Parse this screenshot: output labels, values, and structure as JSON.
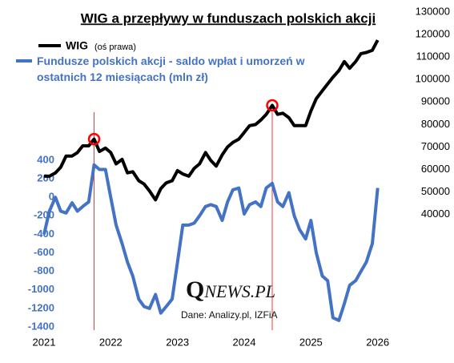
{
  "chart_data": {
    "type": "line",
    "title": "WIG a przepływy w funduszach polskich akcji",
    "legend_note": "(oś prawa)",
    "source": "Dane: Analizy.pl, IZFiA",
    "logo": "QNEWS.PL",
    "x": [
      2021,
      2021.08,
      2021.17,
      2021.25,
      2021.33,
      2021.42,
      2021.5,
      2021.58,
      2021.67,
      2021.75,
      2021.83,
      2021.92,
      2022,
      2022.08,
      2022.17,
      2022.25,
      2022.33,
      2022.42,
      2022.5,
      2022.58,
      2022.67,
      2022.75,
      2022.83,
      2022.92,
      2023,
      2023.08,
      2023.17,
      2023.25,
      2023.33,
      2023.42,
      2023.5,
      2023.58,
      2023.67,
      2023.75,
      2023.83,
      2023.92,
      2024,
      2024.08,
      2024.17,
      2024.25,
      2024.33,
      2024.42,
      2024.5,
      2024.58,
      2024.67,
      2024.75,
      2024.83,
      2024.92,
      2025,
      2025.08,
      2025.17,
      2025.25,
      2025.33,
      2025.42,
      2025.5,
      2025.58,
      2025.67,
      2025.75,
      2025.83,
      2025.92,
      2026
    ],
    "series": [
      {
        "name": "WIG",
        "color": "#000000",
        "axis": "y2",
        "values": [
          57000,
          57000,
          58500,
          61000,
          66000,
          66000,
          67500,
          70500,
          70500,
          73500,
          68000,
          69500,
          67500,
          62500,
          64500,
          58500,
          59000,
          55000,
          53500,
          50500,
          46500,
          51500,
          54000,
          55000,
          59500,
          58000,
          57000,
          60500,
          62500,
          67500,
          64000,
          61500,
          66500,
          70000,
          72000,
          73500,
          76500,
          79500,
          80000,
          82000,
          84500,
          88500,
          84500,
          85000,
          83000,
          79500,
          79500,
          79500,
          86000,
          91500,
          95000,
          98000,
          101000,
          104000,
          108000,
          105000,
          108000,
          111500,
          112000,
          113000,
          117500
        ]
      },
      {
        "name": "Fundusze polskich akcji - saldo wpłat i umorzeń w ostatnich 12 miesiącach (mln zł)",
        "color": "#4472c4",
        "values": [
          -400,
          -150,
          0,
          -150,
          -170,
          -60,
          -150,
          -100,
          -50,
          350,
          300,
          300,
          0,
          -300,
          -500,
          -700,
          -850,
          -1100,
          -1180,
          -1200,
          -1050,
          -1250,
          -1180,
          -1100,
          -700,
          -300,
          -300,
          -280,
          -200,
          -100,
          -80,
          -100,
          -250,
          -50,
          80,
          100,
          -180,
          -80,
          -50,
          -100,
          100,
          150,
          -50,
          -100,
          50,
          -200,
          -350,
          -450,
          -250,
          -600,
          -850,
          -900,
          -1300,
          -1330,
          -1150,
          -950,
          -900,
          -800,
          -700,
          -500,
          100
        ]
      }
    ],
    "highlight_x": [
      2021.75,
      2024.42
    ],
    "highlight_color": "#ff0000",
    "xlim": [
      2021,
      2026.4
    ],
    "xticks": [
      2021,
      2022,
      2023,
      2024,
      2025,
      2026
    ],
    "ylim": [
      -1400,
      2000
    ],
    "yticks": [
      -1400,
      -1200,
      -1000,
      -800,
      -600,
      -400,
      -200,
      0,
      200,
      400
    ],
    "y2lim": [
      -10000,
      130000
    ],
    "y2ticks": [
      40000,
      50000,
      60000,
      70000,
      80000,
      90000,
      100000,
      110000,
      120000,
      130000
    ],
    "grid": false
  }
}
